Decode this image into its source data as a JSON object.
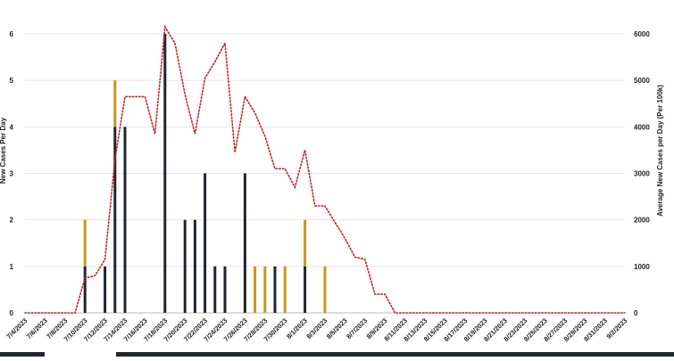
{
  "chart_data": {
    "type": "bar",
    "title": "",
    "ylabel": "New Cases Per Day",
    "y2label": "Average New Cases per Day (Per 100k)",
    "ylim": [
      0,
      6
    ],
    "y2lim": [
      0,
      6000
    ],
    "yticks": [
      "0",
      "1",
      "2",
      "3",
      "4",
      "5",
      "6"
    ],
    "y2ticks": [
      "0",
      "1000",
      "2000",
      "3000",
      "4000",
      "5000",
      "6000"
    ],
    "grid": true,
    "legend": "none",
    "xlabels": [
      "7/4/2023",
      "7/6/2023",
      "7/8/2023",
      "7/10/2023",
      "7/12/2023",
      "7/14/2023",
      "7/16/2023",
      "7/18/2023",
      "7/20/2023",
      "7/22/2023",
      "7/24/2023",
      "7/26/2023",
      "7/28/2023",
      "7/30/2023",
      "8/1/2023",
      "8/3/2023",
      "8/5/2023",
      "8/7/2023",
      "8/9/2023",
      "8/11/2023",
      "8/13/2023",
      "8/15/2023",
      "8/17/2023",
      "8/19/2023",
      "8/21/2023",
      "8/23/2023",
      "8/25/2023",
      "8/27/2023",
      "8/29/2023",
      "8/31/2023",
      "9/2/2023"
    ],
    "dates": [
      "7/4",
      "7/5",
      "7/6",
      "7/7",
      "7/8",
      "7/9",
      "7/10",
      "7/11",
      "7/12",
      "7/13",
      "7/14",
      "7/15",
      "7/16",
      "7/17",
      "7/18",
      "7/19",
      "7/20",
      "7/21",
      "7/22",
      "7/23",
      "7/24",
      "7/25",
      "7/26",
      "7/27",
      "7/28",
      "7/29",
      "7/30",
      "7/31",
      "8/1",
      "8/2",
      "8/3",
      "8/4",
      "8/5",
      "8/6",
      "8/7",
      "8/8",
      "8/9",
      "8/10",
      "8/11",
      "8/12",
      "8/13",
      "8/14",
      "8/15",
      "8/16",
      "8/17",
      "8/18",
      "8/19",
      "8/20",
      "8/21",
      "8/22",
      "8/23",
      "8/24",
      "8/25",
      "8/26",
      "8/27",
      "8/28",
      "8/29",
      "8/30",
      "8/31",
      "9/1",
      "9/2"
    ],
    "series": [
      {
        "color": "#1f2530",
        "values": [
          0,
          0,
          0,
          0,
          0,
          0,
          1,
          0,
          1,
          4,
          4,
          0,
          0,
          0,
          6,
          0,
          2,
          2,
          3,
          1,
          1,
          0,
          3,
          0,
          0,
          1,
          0,
          0,
          1,
          0,
          0,
          0,
          0,
          0,
          0,
          0,
          0,
          0,
          0,
          0,
          0,
          0,
          0,
          0,
          0,
          0,
          0,
          0,
          0,
          0,
          0,
          0,
          0,
          0,
          0,
          0,
          0,
          0,
          0,
          0,
          0
        ]
      },
      {
        "color": "#c8961e",
        "values": [
          0,
          0,
          0,
          0,
          0,
          0,
          1,
          0,
          0,
          1,
          0,
          0,
          0,
          0,
          0,
          0,
          0,
          0,
          0,
          0,
          0,
          0,
          0,
          1,
          1,
          0,
          1,
          0,
          1,
          0,
          1,
          0,
          0,
          0,
          0,
          0,
          0,
          0,
          0,
          0,
          0,
          0,
          0,
          0,
          0,
          0,
          0,
          0,
          0,
          0,
          0,
          0,
          0,
          0,
          0,
          0,
          0,
          0,
          0,
          0,
          0
        ]
      },
      {
        "type": "line",
        "axis": "right",
        "color": "#cc1f1f",
        "dash": "dotted",
        "values": [
          0,
          0,
          0,
          0,
          0,
          0,
          750,
          800,
          1150,
          3300,
          4650,
          4650,
          4650,
          3850,
          6150,
          5800,
          4700,
          3850,
          5050,
          5400,
          5800,
          3450,
          4650,
          4300,
          3800,
          3100,
          3100,
          2700,
          3500,
          2300,
          2300,
          1950,
          1600,
          1200,
          1150,
          400,
          400,
          0,
          0,
          0,
          0,
          0,
          0,
          0,
          0,
          0,
          0,
          0,
          0,
          0,
          0,
          0,
          0,
          0,
          0,
          0,
          0,
          0,
          0,
          0,
          0
        ]
      }
    ]
  }
}
